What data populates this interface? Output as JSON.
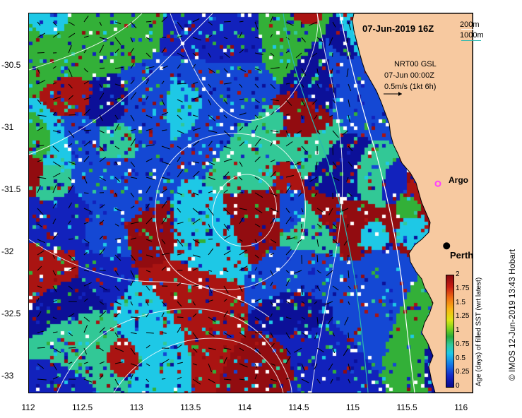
{
  "map": {
    "title": "07-Jun-2019 16Z",
    "lon_range": [
      112,
      116.1
    ],
    "lat_range": [
      -30.08,
      -33.13
    ],
    "lon_ticks": [
      "112",
      "112.5",
      "113",
      "113.5",
      "114",
      "114.5",
      "115",
      "115.5",
      "116"
    ],
    "lat_ticks": [
      "-30.5",
      "-31",
      "-31.5",
      "-32",
      "-32.5",
      "-33"
    ],
    "colors": {
      "land": "#f7c9a0",
      "coast": "#000000",
      "isobath_200": "#ffffff",
      "isobath_1000": "#2ab8b0"
    }
  },
  "isobath_legend": {
    "shallow": "200m",
    "deep": "1000m"
  },
  "currents": {
    "source": "NRT00 GSL",
    "time": "07-Jun 00:00Z",
    "scale": "0.5m/s (1kt 6h)"
  },
  "markers": {
    "argo": {
      "label": "Argo",
      "lon": 115.78,
      "lat": -31.45,
      "color": "#ff40ff"
    },
    "city": {
      "label": "Perth",
      "lon": 115.86,
      "lat": -31.95
    }
  },
  "colorbar": {
    "title": "Age (days) of filled SST (wrt latest)",
    "ticks": [
      "2",
      "1.75",
      "1.5",
      "1.25",
      "1",
      "0.75",
      "0.5",
      "0.25",
      "0"
    ],
    "range": [
      0,
      2
    ]
  },
  "credit": "© IMOS 12-Jun-2019 13:43 Hobart"
}
